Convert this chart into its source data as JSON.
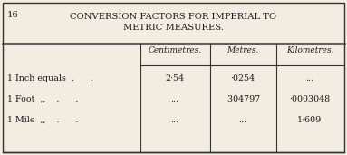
{
  "page_number": "16",
  "title_line1": "CONVERSION FACTORS FOR IMPERIAL TO",
  "title_line2": "METRIC MEASURES.",
  "col_headers": [
    "Centimetres.",
    "Metres.",
    "Kilometres."
  ],
  "row_labels": [
    "1 Inch equals  .      .",
    "1 Foot  ,,    .      .",
    "1 Mile  ,,    .      ."
  ],
  "data": [
    [
      "2·54",
      "·0254",
      "..."
    ],
    [
      "...",
      "·304797",
      "·0003048"
    ],
    [
      "...",
      "...",
      "1·609"
    ]
  ],
  "bg_color": "#f2ede0",
  "border_color": "#333333",
  "text_color": "#1a1a1a",
  "title_fontsize": 7.2,
  "header_fontsize": 6.5,
  "data_fontsize": 6.8,
  "label_fontsize": 6.8,
  "page_num_fontsize": 7.2
}
